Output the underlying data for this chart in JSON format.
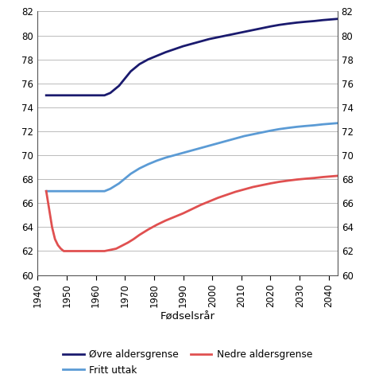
{
  "xlabel": "Fødselsrår",
  "xlim": [
    1940,
    2043
  ],
  "ylim": [
    60,
    82
  ],
  "yticks": [
    60,
    62,
    64,
    66,
    68,
    70,
    72,
    74,
    76,
    78,
    80,
    82
  ],
  "xticks": [
    1940,
    1950,
    1960,
    1970,
    1980,
    1990,
    2000,
    2010,
    2020,
    2030,
    2040
  ],
  "ovre": {
    "x": [
      1943,
      1944,
      1945,
      1946,
      1947,
      1948,
      1949,
      1950,
      1951,
      1952,
      1953,
      1954,
      1955,
      1956,
      1957,
      1958,
      1959,
      1960,
      1961,
      1962,
      1963,
      1964,
      1965,
      1966,
      1967,
      1968,
      1969,
      1970,
      1971,
      1972,
      1973,
      1975,
      1978,
      1981,
      1984,
      1987,
      1990,
      1993,
      1996,
      1999,
      2002,
      2005,
      2008,
      2011,
      2014,
      2017,
      2020,
      2023,
      2026,
      2029,
      2032,
      2035,
      2038,
      2041,
      2043
    ],
    "y": [
      75.0,
      75.0,
      75.0,
      75.0,
      75.0,
      75.0,
      75.0,
      75.0,
      75.0,
      75.0,
      75.0,
      75.0,
      75.0,
      75.0,
      75.0,
      75.0,
      75.0,
      75.0,
      75.0,
      75.0,
      75.0,
      75.1,
      75.2,
      75.4,
      75.6,
      75.8,
      76.1,
      76.4,
      76.7,
      77.0,
      77.2,
      77.6,
      78.0,
      78.3,
      78.6,
      78.85,
      79.1,
      79.3,
      79.5,
      79.7,
      79.85,
      80.0,
      80.15,
      80.3,
      80.45,
      80.6,
      80.75,
      80.88,
      80.98,
      81.07,
      81.14,
      81.2,
      81.28,
      81.34,
      81.38
    ],
    "color": "#1a1a6e",
    "linewidth": 2.0,
    "label": "Øvre aldersgrense"
  },
  "fritt": {
    "x": [
      1943,
      1944,
      1945,
      1946,
      1947,
      1948,
      1949,
      1950,
      1951,
      1952,
      1953,
      1954,
      1955,
      1956,
      1957,
      1958,
      1959,
      1960,
      1961,
      1962,
      1963,
      1964,
      1965,
      1966,
      1967,
      1968,
      1969,
      1970,
      1971,
      1972,
      1973,
      1975,
      1978,
      1981,
      1984,
      1987,
      1990,
      1993,
      1996,
      1999,
      2002,
      2005,
      2008,
      2011,
      2014,
      2017,
      2020,
      2023,
      2026,
      2029,
      2032,
      2035,
      2038,
      2041,
      2043
    ],
    "y": [
      67.0,
      67.0,
      67.0,
      67.0,
      67.0,
      67.0,
      67.0,
      67.0,
      67.0,
      67.0,
      67.0,
      67.0,
      67.0,
      67.0,
      67.0,
      67.0,
      67.0,
      67.0,
      67.0,
      67.0,
      67.0,
      67.1,
      67.2,
      67.35,
      67.5,
      67.65,
      67.85,
      68.05,
      68.25,
      68.45,
      68.6,
      68.9,
      69.25,
      69.55,
      69.8,
      70.0,
      70.2,
      70.4,
      70.6,
      70.8,
      71.0,
      71.2,
      71.4,
      71.6,
      71.75,
      71.9,
      72.05,
      72.18,
      72.28,
      72.37,
      72.44,
      72.5,
      72.58,
      72.64,
      72.68
    ],
    "color": "#5b9bd5",
    "linewidth": 2.0,
    "label": "Fritt uttak"
  },
  "nedre": {
    "x": [
      1943,
      1944,
      1945,
      1946,
      1947,
      1948,
      1949,
      1950,
      1951,
      1952,
      1953,
      1954,
      1955,
      1956,
      1957,
      1958,
      1959,
      1960,
      1961,
      1962,
      1963,
      1965,
      1967,
      1969,
      1971,
      1973,
      1975,
      1978,
      1981,
      1984,
      1987,
      1990,
      1993,
      1996,
      1999,
      2002,
      2005,
      2008,
      2011,
      2014,
      2017,
      2020,
      2023,
      2026,
      2029,
      2032,
      2035,
      2038,
      2041,
      2043
    ],
    "y": [
      67.0,
      65.5,
      64.0,
      63.0,
      62.5,
      62.2,
      62.0,
      62.0,
      62.0,
      62.0,
      62.0,
      62.0,
      62.0,
      62.0,
      62.0,
      62.0,
      62.0,
      62.0,
      62.0,
      62.0,
      62.0,
      62.1,
      62.2,
      62.45,
      62.7,
      63.0,
      63.35,
      63.8,
      64.2,
      64.55,
      64.85,
      65.15,
      65.5,
      65.85,
      66.15,
      66.45,
      66.7,
      66.95,
      67.15,
      67.35,
      67.5,
      67.65,
      67.78,
      67.88,
      67.97,
      68.04,
      68.1,
      68.18,
      68.24,
      68.28
    ],
    "color": "#e05050",
    "linewidth": 2.0,
    "label": "Nedre aldersgrense"
  },
  "legend": {
    "items": [
      "Øvre aldersgrense",
      "Fritt uttak",
      "Nedre aldersgrense"
    ],
    "colors": [
      "#1a1a6e",
      "#5b9bd5",
      "#e05050"
    ]
  },
  "background_color": "#ffffff",
  "grid_color": "#bbbbbb"
}
